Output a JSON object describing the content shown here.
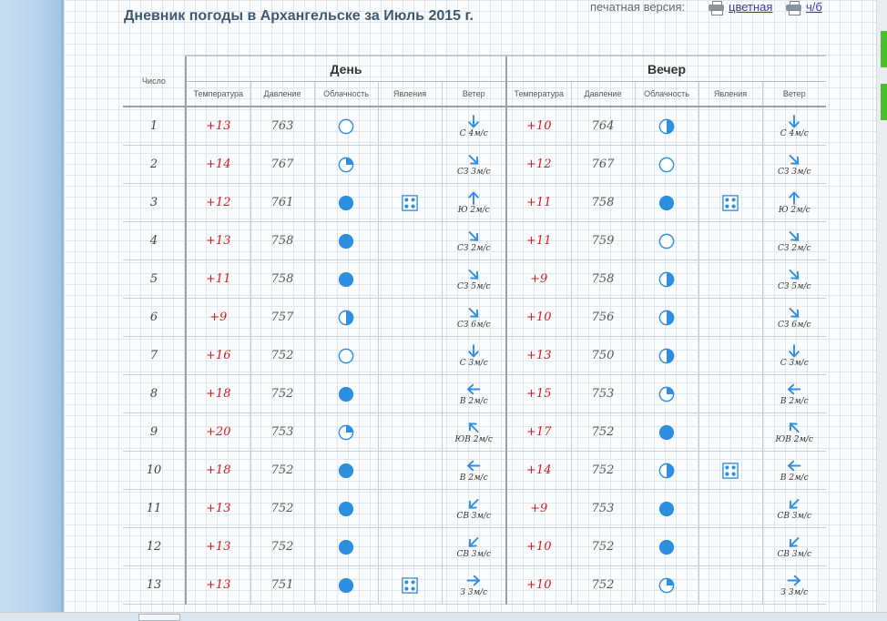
{
  "title": "Дневник погоды в Архангельске за Июль 2015 г.",
  "print": {
    "label": "печатная версия:",
    "color_link": "цветная",
    "bw_link": "ч/б"
  },
  "header": {
    "num": "Число",
    "day": "День",
    "evening": "Вечер",
    "cols": [
      "Температура",
      "Давление",
      "Облачность",
      "Явления",
      "Ветер"
    ]
  },
  "colors": {
    "accent": "#2e8fe0",
    "temp": "#d01c1c",
    "title": "#3d5972"
  },
  "rows": [
    {
      "d": "1",
      "day": {
        "t": "+13",
        "p": "763",
        "c": "clear",
        "ph": "",
        "w": {
          "dir": "S",
          "l": "С 4м/с"
        }
      },
      "eve": {
        "t": "+10",
        "p": "764",
        "c": "half",
        "ph": "",
        "w": {
          "dir": "S",
          "l": "С 4м/с"
        }
      }
    },
    {
      "d": "2",
      "day": {
        "t": "+14",
        "p": "767",
        "c": "quarter",
        "ph": "",
        "w": {
          "dir": "SE",
          "l": "СЗ 3м/с"
        }
      },
      "eve": {
        "t": "+12",
        "p": "767",
        "c": "clear",
        "ph": "",
        "w": {
          "dir": "SE",
          "l": "СЗ 3м/с"
        }
      }
    },
    {
      "d": "3",
      "day": {
        "t": "+12",
        "p": "761",
        "c": "full",
        "ph": "rain",
        "w": {
          "dir": "N",
          "l": "Ю 2м/с"
        }
      },
      "eve": {
        "t": "+11",
        "p": "758",
        "c": "full",
        "ph": "rain",
        "w": {
          "dir": "N",
          "l": "Ю 2м/с"
        }
      }
    },
    {
      "d": "4",
      "day": {
        "t": "+13",
        "p": "758",
        "c": "full",
        "ph": "",
        "w": {
          "dir": "SE",
          "l": "СЗ 2м/с"
        }
      },
      "eve": {
        "t": "+11",
        "p": "759",
        "c": "clear",
        "ph": "",
        "w": {
          "dir": "SE",
          "l": "СЗ 2м/с"
        }
      }
    },
    {
      "d": "5",
      "day": {
        "t": "+11",
        "p": "758",
        "c": "full",
        "ph": "",
        "w": {
          "dir": "SE",
          "l": "СЗ 5м/с"
        }
      },
      "eve": {
        "t": "+9",
        "p": "758",
        "c": "half",
        "ph": "",
        "w": {
          "dir": "SE",
          "l": "СЗ 5м/с"
        }
      }
    },
    {
      "d": "6",
      "day": {
        "t": "+9",
        "p": "757",
        "c": "half",
        "ph": "",
        "w": {
          "dir": "SE",
          "l": "СЗ 6м/с"
        }
      },
      "eve": {
        "t": "+10",
        "p": "756",
        "c": "half",
        "ph": "",
        "w": {
          "dir": "SE",
          "l": "СЗ 6м/с"
        }
      }
    },
    {
      "d": "7",
      "day": {
        "t": "+16",
        "p": "752",
        "c": "clear",
        "ph": "",
        "w": {
          "dir": "S",
          "l": "С 3м/с"
        }
      },
      "eve": {
        "t": "+13",
        "p": "750",
        "c": "half",
        "ph": "",
        "w": {
          "dir": "S",
          "l": "С 3м/с"
        }
      }
    },
    {
      "d": "8",
      "day": {
        "t": "+18",
        "p": "752",
        "c": "full",
        "ph": "",
        "w": {
          "dir": "W",
          "l": "В 2м/с"
        }
      },
      "eve": {
        "t": "+15",
        "p": "753",
        "c": "quarter",
        "ph": "",
        "w": {
          "dir": "W",
          "l": "В 2м/с"
        }
      }
    },
    {
      "d": "9",
      "day": {
        "t": "+20",
        "p": "753",
        "c": "quarter",
        "ph": "",
        "w": {
          "dir": "NW",
          "l": "ЮВ 2м/с"
        }
      },
      "eve": {
        "t": "+17",
        "p": "752",
        "c": "full",
        "ph": "",
        "w": {
          "dir": "NW",
          "l": "ЮВ 2м/с"
        }
      }
    },
    {
      "d": "10",
      "day": {
        "t": "+18",
        "p": "752",
        "c": "full",
        "ph": "",
        "w": {
          "dir": "W",
          "l": "В 2м/с"
        }
      },
      "eve": {
        "t": "+14",
        "p": "752",
        "c": "half",
        "ph": "rain",
        "w": {
          "dir": "W",
          "l": "В 2м/с"
        }
      }
    },
    {
      "d": "11",
      "day": {
        "t": "+13",
        "p": "752",
        "c": "full",
        "ph": "",
        "w": {
          "dir": "SW",
          "l": "СВ 3м/с"
        }
      },
      "eve": {
        "t": "+9",
        "p": "753",
        "c": "full",
        "ph": "",
        "w": {
          "dir": "SW",
          "l": "СВ 3м/с"
        }
      }
    },
    {
      "d": "12",
      "day": {
        "t": "+13",
        "p": "752",
        "c": "full",
        "ph": "",
        "w": {
          "dir": "SW",
          "l": "СВ 3м/с"
        }
      },
      "eve": {
        "t": "+10",
        "p": "752",
        "c": "full",
        "ph": "",
        "w": {
          "dir": "SW",
          "l": "СВ 3м/с"
        }
      }
    },
    {
      "d": "13",
      "day": {
        "t": "+13",
        "p": "751",
        "c": "full",
        "ph": "rain",
        "w": {
          "dir": "E",
          "l": "З 3м/с"
        }
      },
      "eve": {
        "t": "+10",
        "p": "752",
        "c": "quarter",
        "ph": "",
        "w": {
          "dir": "E",
          "l": "З 3м/с"
        }
      }
    }
  ]
}
